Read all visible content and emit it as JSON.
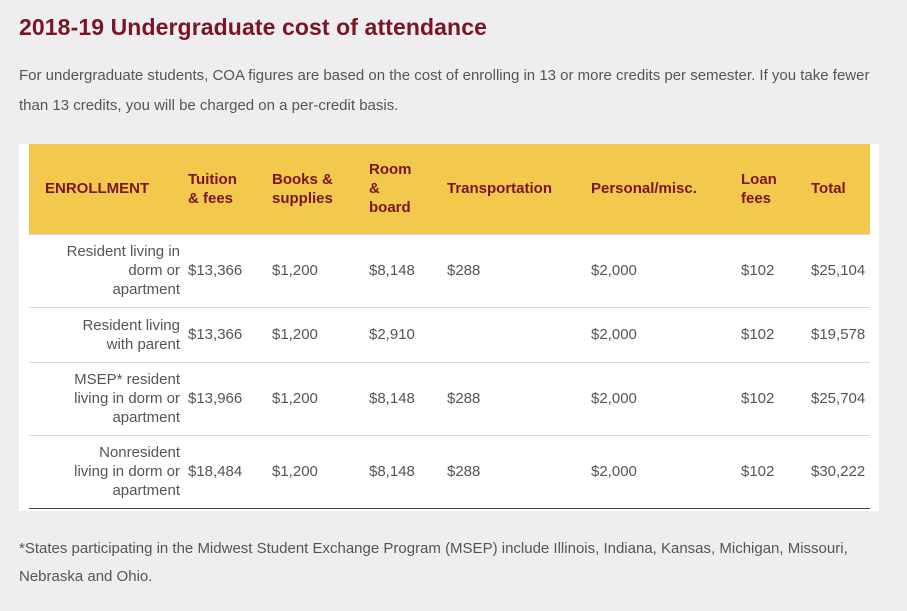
{
  "page": {
    "title": "2018-19 Undergraduate cost of attendance",
    "intro": "For undergraduate students, COA figures are based on the cost of enrolling in 13 or more credits per semester. If you take fewer than 13 credits, you will be charged on a per-credit basis.",
    "footnote": "*States participating in the Midwest Student Exchange Program (MSEP) include Illinois, Indiana, Kansas, Michigan, Missouri, Nebraska and Ohio."
  },
  "table": {
    "headers": {
      "enrollment": "ENROLLMENT",
      "tuition_line1": "Tuition",
      "tuition_line2": "& fees",
      "books_line1": "Books &",
      "books_line2": "supplies",
      "room_line1": "Room",
      "room_line2": "&",
      "room_line3": "board",
      "transportation": "Transportation",
      "personal": "Personal/misc.",
      "loan_line1": "Loan",
      "loan_line2": "fees",
      "total": "Total"
    },
    "rows": [
      {
        "enrollment_lines": [
          "Resident living in",
          "dorm or",
          "apartment"
        ],
        "tuition": "$13,366",
        "books": "$1,200",
        "room": "$8,148",
        "transportation": "$288",
        "personal": "$2,000",
        "loan": "$102",
        "total": "$25,104"
      },
      {
        "enrollment_lines": [
          "Resident living",
          "with parent"
        ],
        "tuition": "$13,366",
        "books": "$1,200",
        "room": "$2,910",
        "transportation": "",
        "personal": "$2,000",
        "loan": "$102",
        "total": "$19,578"
      },
      {
        "enrollment_lines": [
          "MSEP* resident",
          "living in dorm or",
          "apartment"
        ],
        "tuition": "$13,966",
        "books": "$1,200",
        "room": "$8,148",
        "transportation": "$288",
        "personal": "$2,000",
        "loan": "$102",
        "total": "$25,704"
      },
      {
        "enrollment_lines": [
          "Nonresident",
          "living in dorm or",
          "apartment"
        ],
        "tuition": "$18,484",
        "books": "$1,200",
        "room": "$8,148",
        "transportation": "$288",
        "personal": "$2,000",
        "loan": "$102",
        "total": "$30,222"
      }
    ]
  },
  "colors": {
    "heading": "#7a1526",
    "header_bg": "#f2c94c",
    "page_bg": "#eeeef0",
    "body_text": "#555555"
  }
}
